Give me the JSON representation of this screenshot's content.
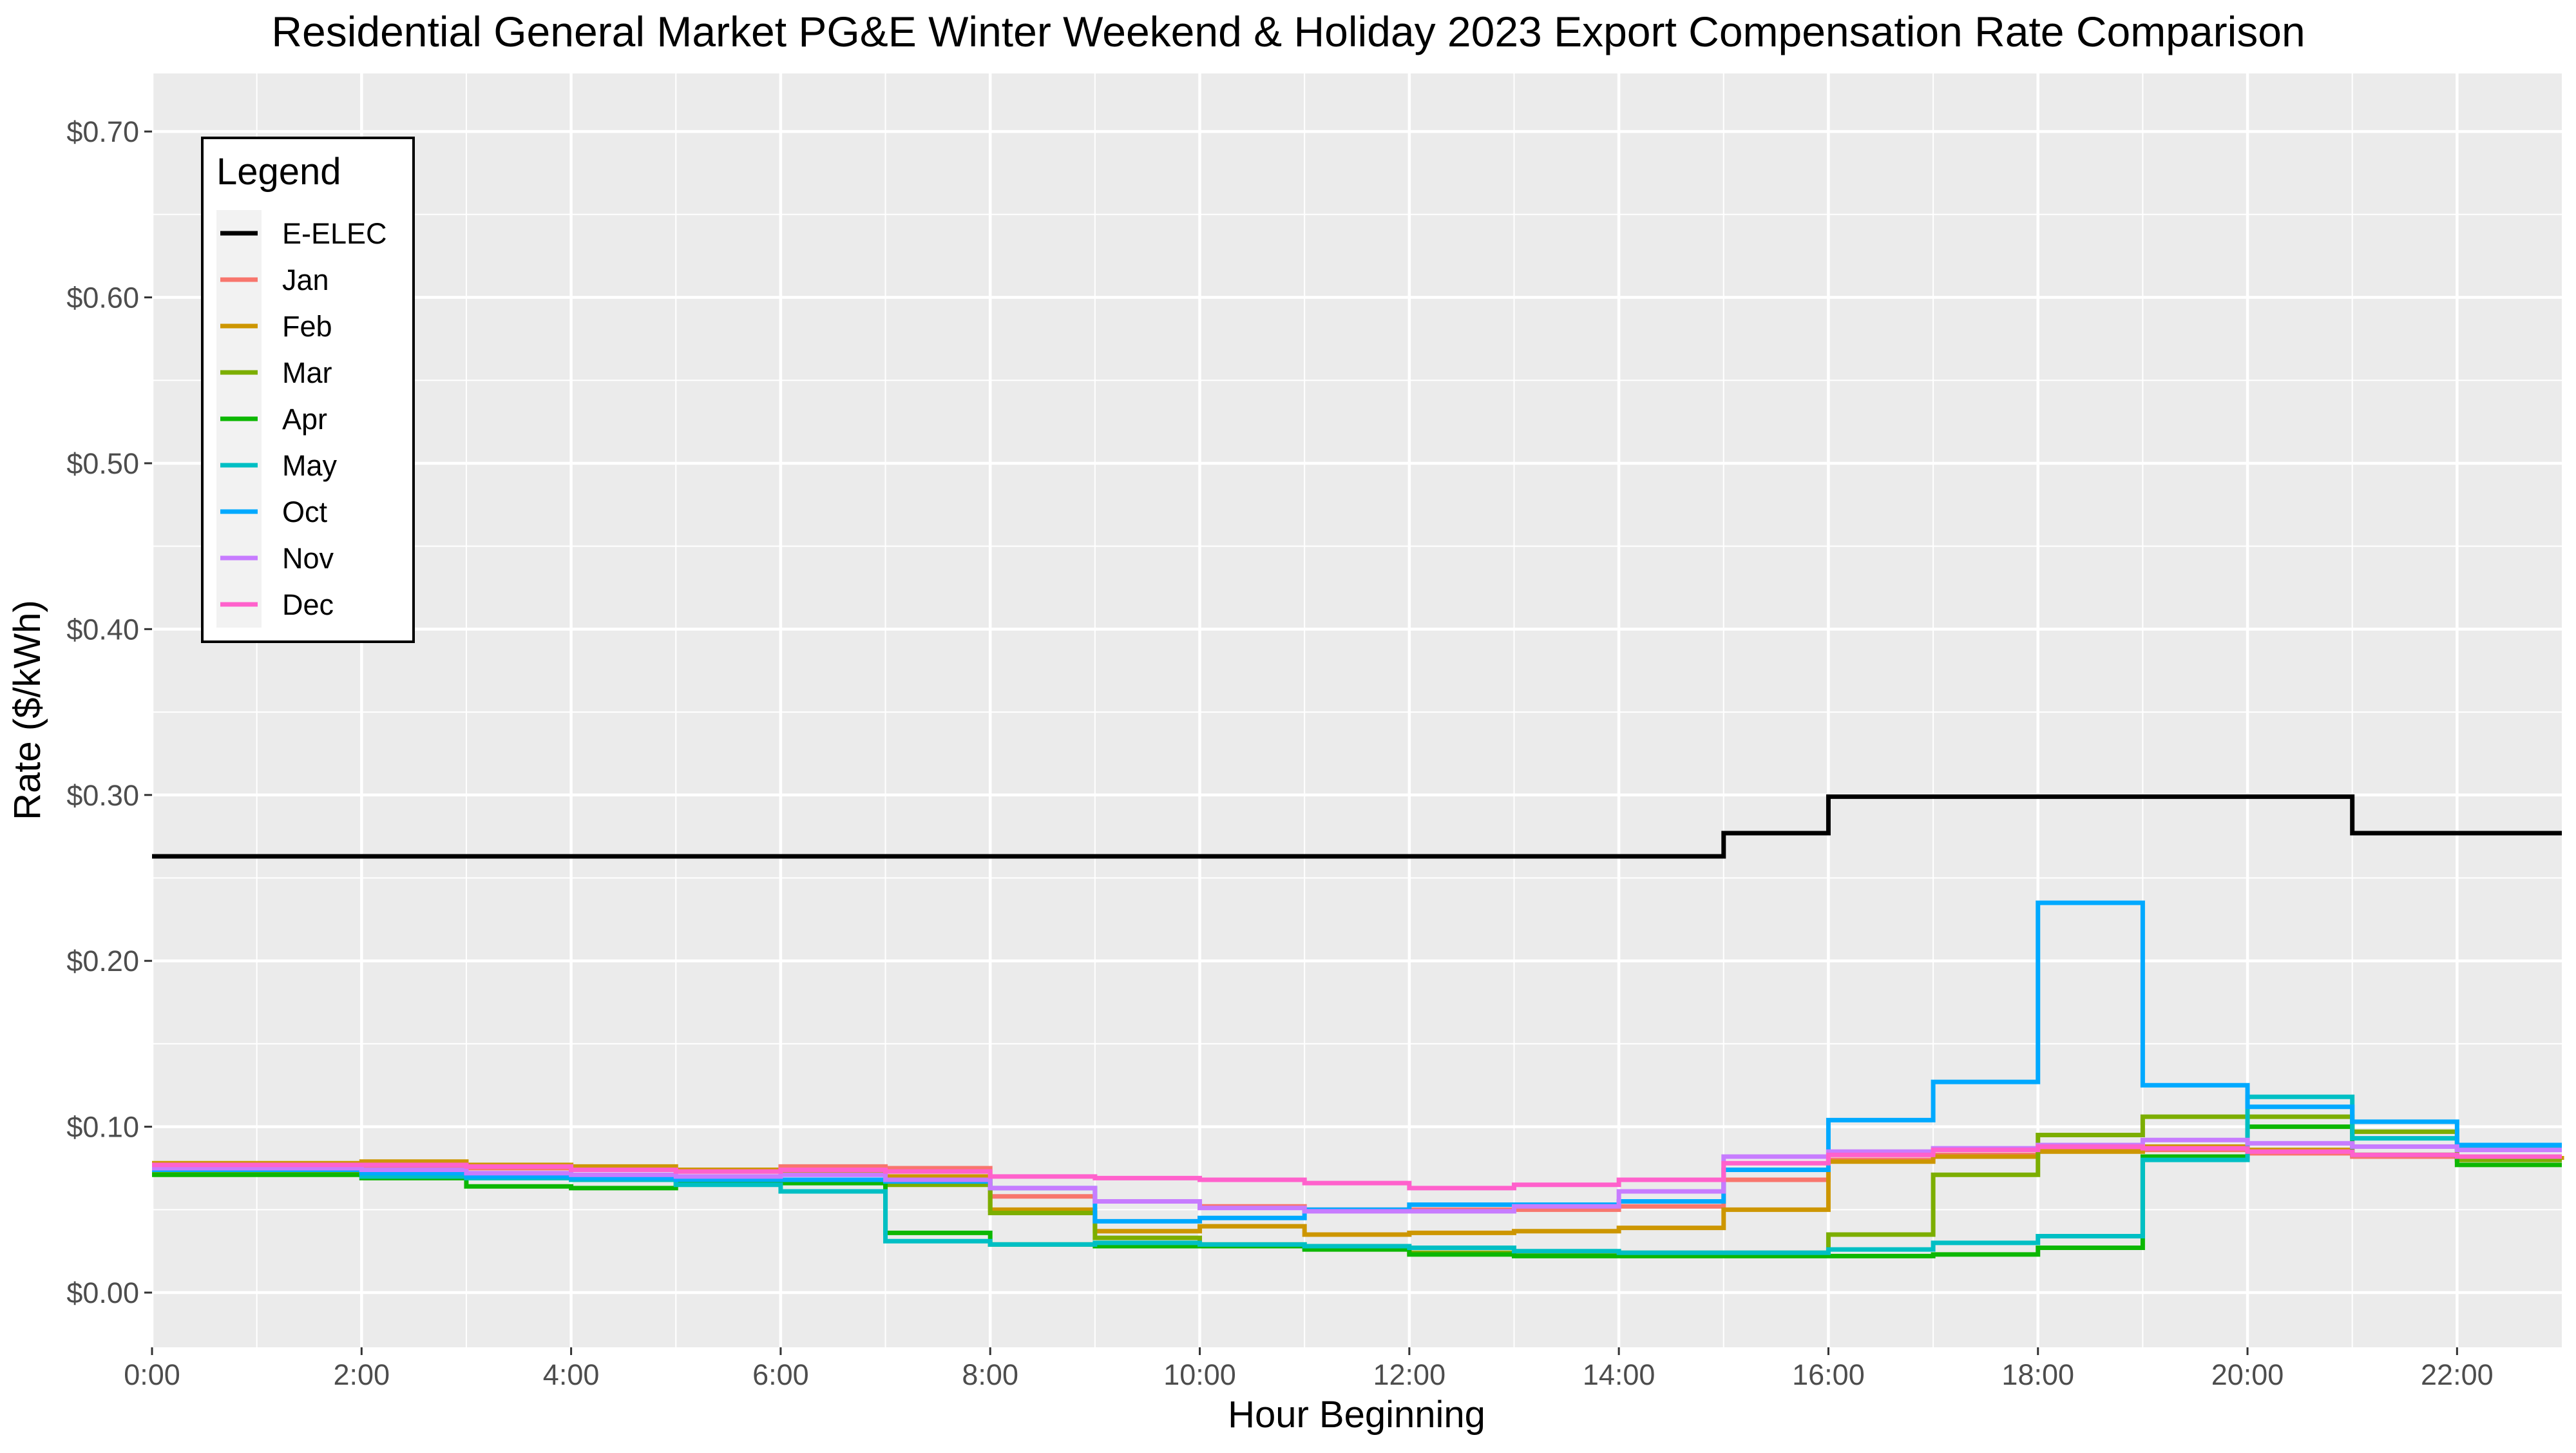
{
  "chart_data": {
    "type": "line",
    "step": true,
    "title": "Residential General Market PG&E Winter Weekend & Holiday 2023 Export Compensation Rate Comparison",
    "xlabel": "Hour Beginning",
    "ylabel": "Rate ($/kWh)",
    "xlim": [
      0,
      23
    ],
    "ylim": [
      -0.033,
      0.735
    ],
    "x": [
      0,
      1,
      2,
      3,
      4,
      5,
      6,
      7,
      8,
      9,
      10,
      11,
      12,
      13,
      14,
      15,
      16,
      17,
      18,
      19,
      20,
      21,
      22,
      23
    ],
    "x_ticks": [
      0,
      2,
      4,
      6,
      8,
      10,
      12,
      14,
      16,
      18,
      20,
      22
    ],
    "x_tick_labels": [
      "0:00",
      "2:00",
      "4:00",
      "6:00",
      "8:00",
      "10:00",
      "12:00",
      "14:00",
      "16:00",
      "18:00",
      "20:00",
      "22:00"
    ],
    "y_ticks": [
      0,
      0.1,
      0.2,
      0.3,
      0.4,
      0.5,
      0.6,
      0.7
    ],
    "y_tick_labels": [
      "$0.00",
      "$0.10",
      "$0.20",
      "$0.30",
      "$0.40",
      "$0.50",
      "$0.60",
      "$0.70"
    ],
    "grid": true,
    "legend": {
      "title": "Legend",
      "position": "top-left"
    },
    "series": [
      {
        "name": "E-ELEC",
        "color": "#000000",
        "values": [
          0.263,
          0.263,
          0.263,
          0.263,
          0.263,
          0.263,
          0.263,
          0.263,
          0.263,
          0.263,
          0.263,
          0.263,
          0.263,
          0.263,
          0.263,
          0.277,
          0.299,
          0.299,
          0.299,
          0.299,
          0.299,
          0.277,
          0.277,
          0.277
        ]
      },
      {
        "name": "Jan",
        "color": "#F8766D",
        "values": [
          0.077,
          0.077,
          0.076,
          0.075,
          0.074,
          0.073,
          0.076,
          0.075,
          0.058,
          0.055,
          0.052,
          0.05,
          0.05,
          0.05,
          0.052,
          0.068,
          0.08,
          0.083,
          0.086,
          0.086,
          0.084,
          0.082,
          0.08,
          0.08
        ]
      },
      {
        "name": "Feb",
        "color": "#CD9600",
        "values": [
          0.078,
          0.078,
          0.079,
          0.077,
          0.076,
          0.074,
          0.073,
          0.07,
          0.05,
          0.037,
          0.04,
          0.035,
          0.036,
          0.037,
          0.039,
          0.05,
          0.079,
          0.082,
          0.085,
          0.088,
          0.086,
          0.083,
          0.081,
          0.08
        ]
      },
      {
        "name": "Mar",
        "color": "#7CAE00",
        "values": [
          0.072,
          0.073,
          0.072,
          0.07,
          0.069,
          0.068,
          0.067,
          0.065,
          0.048,
          0.033,
          0.029,
          0.027,
          0.024,
          0.024,
          0.024,
          0.024,
          0.035,
          0.071,
          0.095,
          0.106,
          0.106,
          0.097,
          0.08,
          0.08
        ]
      },
      {
        "name": "Apr",
        "color": "#0CB702",
        "values": [
          0.071,
          0.071,
          0.069,
          0.064,
          0.063,
          0.066,
          0.066,
          0.036,
          0.029,
          0.028,
          0.028,
          0.026,
          0.023,
          0.022,
          0.022,
          0.022,
          0.022,
          0.023,
          0.027,
          0.082,
          0.1,
          0.083,
          0.077,
          0.077
        ]
      },
      {
        "name": "May",
        "color": "#00BFC4",
        "values": [
          0.074,
          0.074,
          0.07,
          0.069,
          0.068,
          0.065,
          0.061,
          0.031,
          0.029,
          0.03,
          0.029,
          0.028,
          0.027,
          0.025,
          0.024,
          0.024,
          0.026,
          0.03,
          0.034,
          0.08,
          0.118,
          0.093,
          0.087,
          0.087
        ]
      },
      {
        "name": "Oct",
        "color": "#00A9FF",
        "values": [
          0.074,
          0.074,
          0.072,
          0.07,
          0.069,
          0.068,
          0.068,
          0.067,
          0.063,
          0.043,
          0.045,
          0.05,
          0.053,
          0.053,
          0.055,
          0.074,
          0.104,
          0.127,
          0.235,
          0.125,
          0.112,
          0.103,
          0.089,
          0.089
        ]
      },
      {
        "name": "Nov",
        "color": "#C77CFF",
        "values": [
          0.075,
          0.075,
          0.074,
          0.072,
          0.071,
          0.07,
          0.071,
          0.068,
          0.063,
          0.055,
          0.051,
          0.049,
          0.049,
          0.052,
          0.061,
          0.082,
          0.085,
          0.087,
          0.089,
          0.092,
          0.09,
          0.088,
          0.086,
          0.086
        ]
      },
      {
        "name": "Dec",
        "color": "#FF61CC",
        "values": [
          0.077,
          0.077,
          0.077,
          0.076,
          0.074,
          0.073,
          0.074,
          0.073,
          0.07,
          0.069,
          0.068,
          0.066,
          0.063,
          0.065,
          0.068,
          0.078,
          0.083,
          0.086,
          0.088,
          0.087,
          0.085,
          0.083,
          0.082,
          0.082
        ]
      }
    ]
  }
}
